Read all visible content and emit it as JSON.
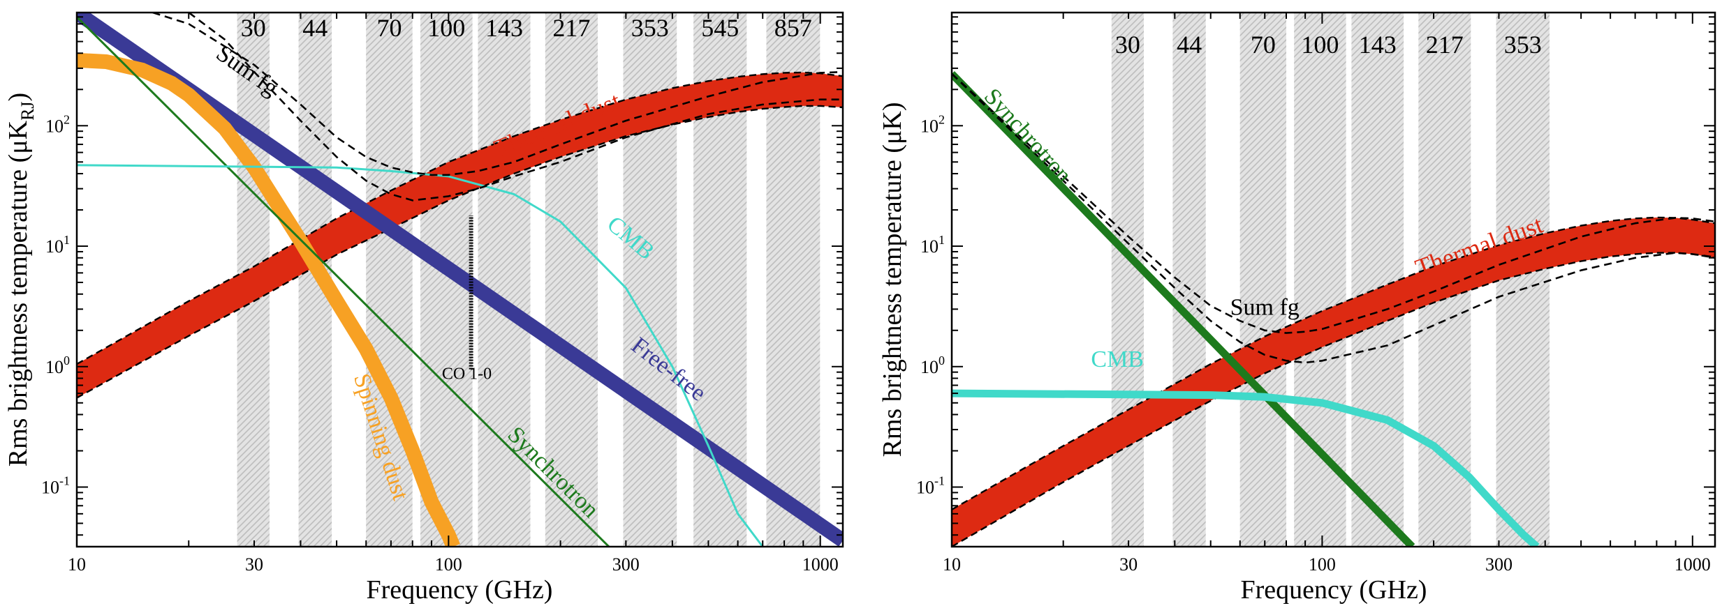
{
  "chart_data": [
    {
      "type": "line",
      "panel": "left",
      "xlabel": "Frequency (GHz)",
      "ylabel_main": "Rms brightness temperature (μK",
      "ylabel_sub": "RJ",
      "ylabel_close": ")",
      "xscale": "log",
      "yscale": "log",
      "xlim": [
        10,
        1150
      ],
      "ylim": [
        0.032,
        870
      ],
      "xticks": [
        {
          "value": 10,
          "label": "10"
        },
        {
          "value": 30,
          "label": "30"
        },
        {
          "value": 100,
          "label": "100"
        },
        {
          "value": 300,
          "label": "300"
        },
        {
          "value": 1000,
          "label": "1000"
        }
      ],
      "yticks": [
        {
          "value": 0.1,
          "base": "10",
          "exp": "-1"
        },
        {
          "value": 1,
          "base": "10",
          "exp": "0"
        },
        {
          "value": 10,
          "base": "10",
          "exp": "1"
        },
        {
          "value": 100,
          "base": "10",
          "exp": "2"
        }
      ],
      "bands": [
        {
          "label": "30",
          "lo": 27,
          "hi": 33
        },
        {
          "label": "44",
          "lo": 39.5,
          "hi": 48.5
        },
        {
          "label": "70",
          "lo": 60,
          "hi": 80
        },
        {
          "label": "100",
          "lo": 84,
          "hi": 116
        },
        {
          "label": "143",
          "lo": 120,
          "hi": 166
        },
        {
          "label": "217",
          "lo": 182,
          "hi": 252
        },
        {
          "label": "353",
          "lo": 295,
          "hi": 411
        },
        {
          "label": "545",
          "lo": 456,
          "hi": 634
        },
        {
          "label": "857",
          "lo": 716,
          "hi": 998
        }
      ],
      "series": [
        {
          "name": "Thermal dust",
          "kind": "band",
          "color": "#dd2a12",
          "x": [
            10,
            20,
            30,
            50,
            70,
            100,
            150,
            200,
            300,
            400,
            500,
            600,
            700,
            800,
            900,
            1000,
            1150
          ],
          "lower": [
            0.55,
            1.8,
            3.5,
            8.5,
            14,
            24,
            40,
            55,
            82,
            102,
            118,
            130,
            138,
            143,
            146,
            146,
            142
          ],
          "upper": [
            1.05,
            3.5,
            6.8,
            17,
            29,
            50,
            82,
            112,
            165,
            205,
            235,
            255,
            268,
            275,
            277,
            272,
            258
          ]
        },
        {
          "name": "Free-free",
          "kind": "thick",
          "color": "#3a3a96",
          "x": [
            10,
            1150
          ],
          "y": [
            870,
            0.036
          ]
        },
        {
          "name": "Spinning dust",
          "kind": "thick",
          "color": "#f7a124",
          "x": [
            10,
            12,
            15,
            18,
            20,
            25,
            30,
            40,
            50,
            60,
            70,
            80,
            90,
            100,
            103
          ],
          "y": [
            350,
            340,
            290,
            225,
            180,
            95,
            45,
            11,
            3.5,
            1.4,
            0.55,
            0.2,
            0.075,
            0.04,
            0.032
          ]
        },
        {
          "name": "Synchrotron",
          "kind": "line",
          "color": "#1d7a1d",
          "x": [
            10,
            270
          ],
          "y": [
            800,
            0.032
          ]
        },
        {
          "name": "CMB",
          "kind": "line",
          "color": "#40d9c9",
          "x": [
            10,
            50,
            70,
            100,
            150,
            200,
            300,
            400,
            500,
            600,
            700
          ],
          "y": [
            47,
            45,
            42,
            38,
            27,
            16,
            4.5,
            1.0,
            0.22,
            0.06,
            0.032
          ]
        },
        {
          "name": "Sum fg upper",
          "kind": "dashed",
          "color": "#000000",
          "x": [
            16,
            20,
            30,
            40,
            50,
            60,
            70,
            80,
            90,
            100,
            120,
            150,
            200,
            300,
            500,
            700,
            1000,
            1150
          ],
          "y": [
            870,
            700,
            320,
            150,
            80,
            55,
            45,
            41,
            39,
            39,
            42,
            50,
            70,
            110,
            175,
            230,
            275,
            280
          ]
        },
        {
          "name": "Sum fg lower",
          "kind": "dashed",
          "color": "#000000",
          "x": [
            20,
            25,
            30,
            40,
            50,
            60,
            70,
            80,
            100,
            120,
            150,
            200,
            300,
            500,
            700,
            1000,
            1150
          ],
          "y": [
            870,
            520,
            280,
            110,
            55,
            35,
            27,
            24,
            26,
            30,
            38,
            50,
            80,
            125,
            150,
            165,
            165
          ]
        }
      ],
      "annotations": [
        {
          "text": "Thermal dust",
          "color": "#dd2a12",
          "x": 200,
          "y": 88,
          "angle": -22,
          "size": 36
        },
        {
          "text": "CMB",
          "color": "#40d9c9",
          "x": 300,
          "y": 10.5,
          "angle": 40,
          "size": 34
        },
        {
          "text": "Free-free",
          "color": "#3a3a96",
          "x": 380,
          "y": 0.85,
          "angle": 38,
          "size": 34
        },
        {
          "text": "Synchrotron",
          "color": "#1d7a1d",
          "x": 185,
          "y": 0.12,
          "angle": 45,
          "size": 34
        },
        {
          "text": "Spinning dust",
          "color": "#f7a124",
          "x": 63,
          "y": 0.25,
          "angle": 72,
          "size": 34
        },
        {
          "text": "Sum fg",
          "color": "#000000",
          "x": 28,
          "y": 255,
          "angle": 35,
          "size": 34
        },
        {
          "text": "CO 1-0",
          "color": "#000000",
          "x": 112,
          "y": 0.79,
          "angle": 0,
          "size": 24
        }
      ],
      "co_line": {
        "label": "CO 1-0",
        "x": 115,
        "y0": 0.95,
        "y1": 18
      }
    },
    {
      "type": "line",
      "panel": "right",
      "xlabel": "Frequency (GHz)",
      "ylabel_main": "Rms brightness temperature (μK)",
      "xscale": "log",
      "yscale": "log",
      "xlim": [
        10,
        1150
      ],
      "ylim": [
        0.032,
        870
      ],
      "xticks": [
        {
          "value": 10,
          "label": "10"
        },
        {
          "value": 30,
          "label": "30"
        },
        {
          "value": 100,
          "label": "100"
        },
        {
          "value": 300,
          "label": "300"
        },
        {
          "value": 1000,
          "label": "1000"
        }
      ],
      "yticks": [
        {
          "value": 0.1,
          "base": "10",
          "exp": "-1"
        },
        {
          "value": 1,
          "base": "10",
          "exp": "0"
        },
        {
          "value": 10,
          "base": "10",
          "exp": "1"
        },
        {
          "value": 100,
          "base": "10",
          "exp": "2"
        }
      ],
      "bands": [
        {
          "label": "30",
          "lo": 27,
          "hi": 33
        },
        {
          "label": "44",
          "lo": 39.5,
          "hi": 48.5
        },
        {
          "label": "70",
          "lo": 60,
          "hi": 80
        },
        {
          "label": "100",
          "lo": 84,
          "hi": 116
        },
        {
          "label": "143",
          "lo": 120,
          "hi": 166
        },
        {
          "label": "217",
          "lo": 182,
          "hi": 252
        },
        {
          "label": "353",
          "lo": 295,
          "hi": 411
        }
      ],
      "series": [
        {
          "name": "Thermal dust",
          "kind": "band",
          "color": "#dd2a12",
          "x": [
            10,
            20,
            30,
            50,
            70,
            100,
            150,
            200,
            300,
            400,
            500,
            600,
            700,
            800,
            900,
            1000,
            1150
          ],
          "lower": [
            0.032,
            0.11,
            0.22,
            0.52,
            0.88,
            1.45,
            2.4,
            3.4,
            5.2,
            6.5,
            7.5,
            8.2,
            8.6,
            8.8,
            8.8,
            8.6,
            8.0
          ],
          "upper": [
            0.065,
            0.22,
            0.44,
            1.05,
            1.78,
            2.9,
            4.8,
            6.8,
            10.2,
            12.8,
            14.8,
            16.2,
            17.0,
            17.3,
            17.2,
            16.6,
            15.5
          ]
        },
        {
          "name": "Synchrotron",
          "kind": "medium",
          "color": "#1d7a1d",
          "x": [
            10,
            175
          ],
          "y": [
            270,
            0.032
          ]
        },
        {
          "name": "CMB",
          "kind": "medium",
          "color": "#40d9c9",
          "x": [
            10,
            50,
            70,
            100,
            150,
            200,
            250,
            300,
            350,
            380
          ],
          "y": [
            0.6,
            0.58,
            0.56,
            0.5,
            0.36,
            0.22,
            0.12,
            0.065,
            0.04,
            0.032
          ]
        },
        {
          "name": "Sum fg upper",
          "kind": "dashed",
          "color": "#000000",
          "x": [
            10,
            20,
            30,
            40,
            50,
            60,
            70,
            80,
            90,
            100,
            150,
            200,
            300,
            500,
            700,
            900,
            1000,
            1150
          ],
          "y": [
            270,
            38,
            12,
            5.5,
            3.2,
            2.4,
            2.0,
            1.9,
            1.95,
            2.05,
            3.0,
            4.2,
            7.0,
            12.0,
            15.5,
            17.2,
            17.0,
            16.0
          ]
        },
        {
          "name": "Sum fg lower",
          "kind": "dashed",
          "color": "#000000",
          "x": [
            10,
            20,
            30,
            40,
            50,
            60,
            70,
            80,
            90,
            100,
            150,
            200,
            300,
            500,
            700,
            900,
            1000,
            1150
          ],
          "y": [
            270,
            35,
            10.5,
            4.5,
            2.4,
            1.6,
            1.25,
            1.12,
            1.08,
            1.12,
            1.5,
            2.2,
            3.8,
            6.3,
            8.0,
            8.8,
            8.6,
            8.1
          ]
        }
      ],
      "annotations": [
        {
          "text": "Synchrotron",
          "color": "#1d7a1d",
          "x": 15.5,
          "y": 75,
          "angle": 48,
          "size": 34
        },
        {
          "text": "Thermal dust",
          "color": "#dd2a12",
          "x": 270,
          "y": 8.6,
          "angle": -20,
          "size": 36
        },
        {
          "text": "Sum fg",
          "color": "#000000",
          "x": 70,
          "y": 2.7,
          "angle": 0,
          "size": 34
        },
        {
          "text": "CMB",
          "color": "#40d9c9",
          "x": 28,
          "y": 1.0,
          "angle": 0,
          "size": 34
        }
      ]
    }
  ]
}
